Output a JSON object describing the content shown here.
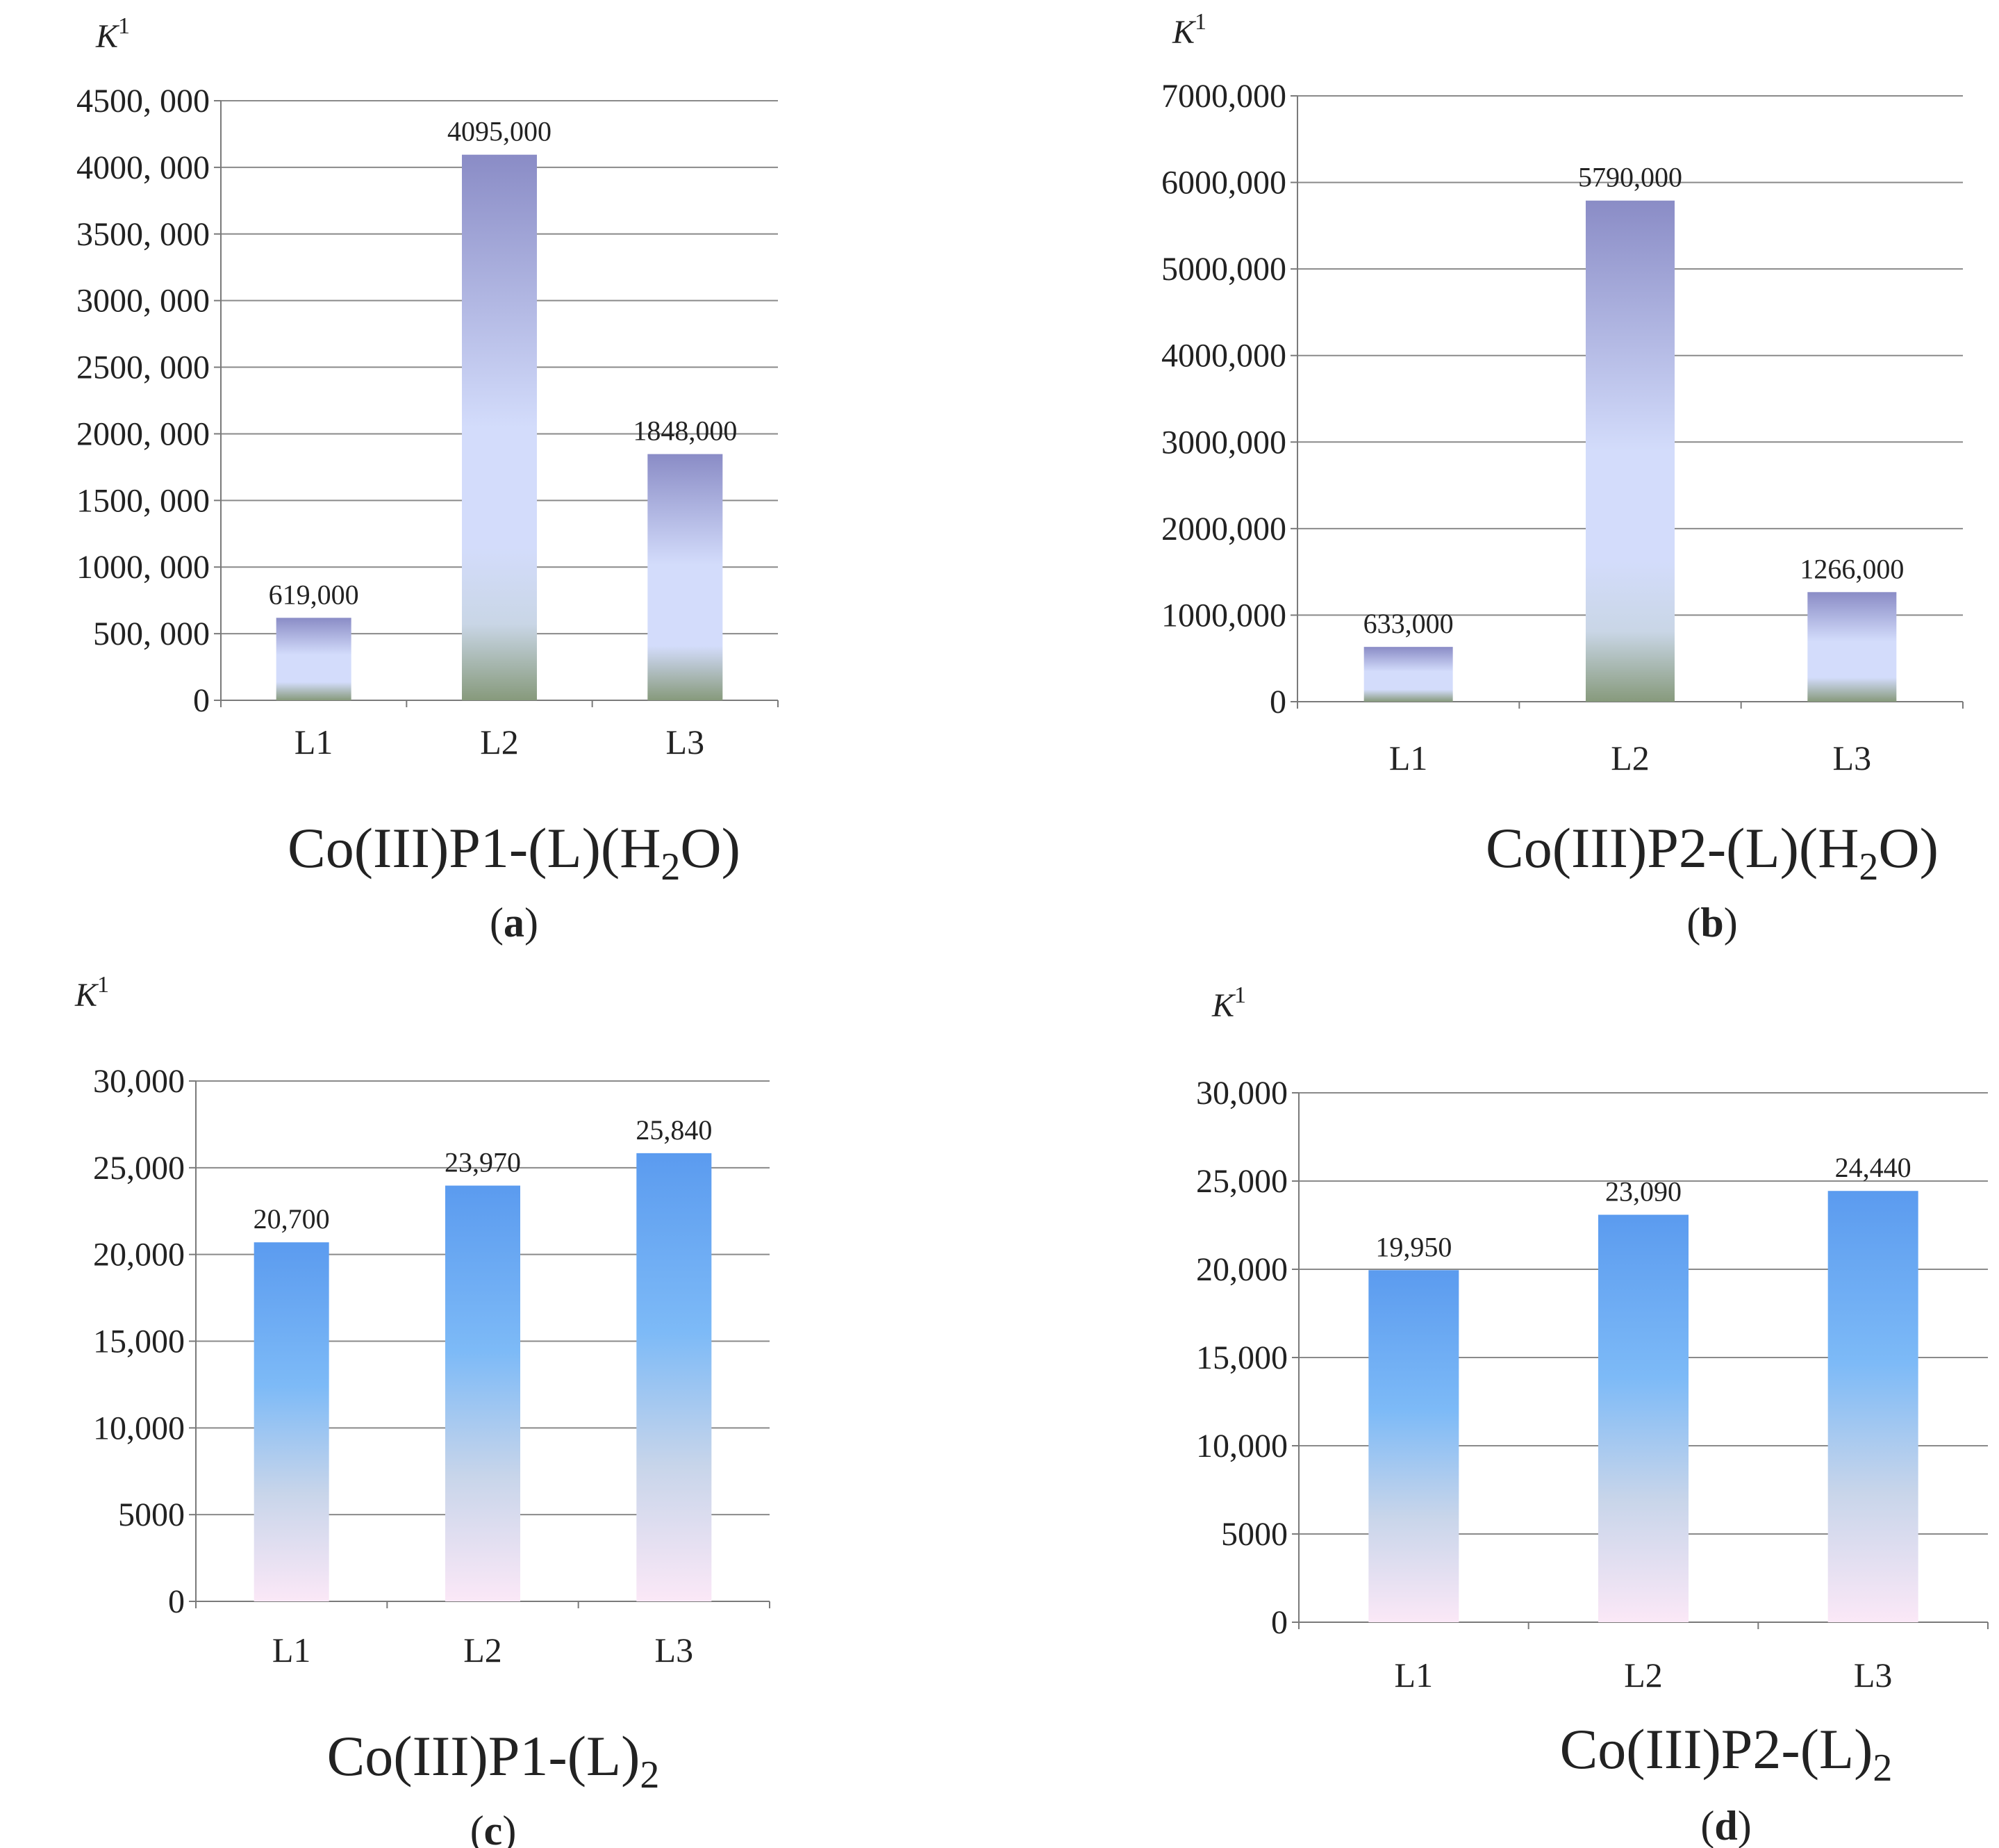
{
  "chart_data": [
    {
      "type": "bar",
      "panel": "a",
      "title_main": "Co(III)P1-(L)(H",
      "title_sub": "2",
      "title_end": "O)",
      "ylabel": "K",
      "ylabel_sup": "1",
      "categories": [
        "L1",
        "L2",
        "L3"
      ],
      "values": [
        619000,
        4095000,
        1848000
      ],
      "value_labels": [
        "619,000",
        "4095,000",
        "1848,000"
      ],
      "ylim": [
        0,
        4500000
      ],
      "yticks": [
        0,
        500000,
        1000000,
        1500000,
        2000000,
        2500000,
        3000000,
        3500000,
        4000000,
        4500000
      ],
      "ytick_labels": [
        "0",
        "500, 000",
        "1000, 000",
        "1500, 000",
        "2000, 000",
        "2500, 000",
        "3000, 000",
        "3500, 000",
        "4000, 000",
        "4500, 000"
      ],
      "gradient": "purple",
      "grid": true
    },
    {
      "type": "bar",
      "panel": "b",
      "title_main": "Co(III)P2-(L)(H",
      "title_sub": "2",
      "title_end": "O)",
      "ylabel": "K",
      "ylabel_sup": "1",
      "categories": [
        "L1",
        "L2",
        "L3"
      ],
      "values": [
        633000,
        5790000,
        1266000
      ],
      "value_labels": [
        "633,000",
        "5790,000",
        "1266,000"
      ],
      "ylim": [
        0,
        7000000
      ],
      "yticks": [
        0,
        1000000,
        2000000,
        3000000,
        4000000,
        5000000,
        6000000,
        7000000
      ],
      "ytick_labels": [
        "0",
        "1000,000",
        "2000,000",
        "3000,000",
        "4000,000",
        "5000,000",
        "6000,000",
        "7000,000"
      ],
      "gradient": "purple",
      "grid": true
    },
    {
      "type": "bar",
      "panel": "c",
      "title_main": "Co(III)P1-(L)",
      "title_sub": "2",
      "title_end": "",
      "ylabel": "K",
      "ylabel_sup": "1",
      "categories": [
        "L1",
        "L2",
        "L3"
      ],
      "values": [
        20700,
        23970,
        25840
      ],
      "value_labels": [
        "20,700",
        "23,970",
        "25,840"
      ],
      "ylim": [
        0,
        30000
      ],
      "yticks": [
        0,
        5000,
        10000,
        15000,
        20000,
        25000,
        30000
      ],
      "ytick_labels": [
        "0",
        "5000",
        "10,000",
        "15,000",
        "20,000",
        "25,000",
        "30,000"
      ],
      "gradient": "blue",
      "grid": true
    },
    {
      "type": "bar",
      "panel": "d",
      "title_main": "Co(III)P2-(L)",
      "title_sub": "2",
      "title_end": "",
      "ylabel": "K",
      "ylabel_sup": "1",
      "categories": [
        "L1",
        "L2",
        "L3"
      ],
      "values": [
        19950,
        23090,
        24440
      ],
      "value_labels": [
        "19,950",
        "23,090",
        "24,440"
      ],
      "ylim": [
        0,
        30000
      ],
      "yticks": [
        0,
        5000,
        10000,
        15000,
        20000,
        25000,
        30000
      ],
      "ytick_labels": [
        "0",
        "5000",
        "10,000",
        "15,000",
        "20,000",
        "25,000",
        "30,000"
      ],
      "gradient": "blue",
      "grid": true
    }
  ],
  "panel_labels": [
    "a",
    "b",
    "c",
    "d"
  ],
  "colors": {
    "grid": "#8a8a8a",
    "axis": "#7a7a7a",
    "purple_top": "#8a8cc6",
    "purple_mid": "#d3dcfb",
    "purple_bottom": "#879a7c",
    "blue_top": "#5b9bef",
    "blue_mid": "#7dbaf7",
    "blue_low": "#c8d5ea",
    "blue_bottom": "#fbe8f7"
  }
}
